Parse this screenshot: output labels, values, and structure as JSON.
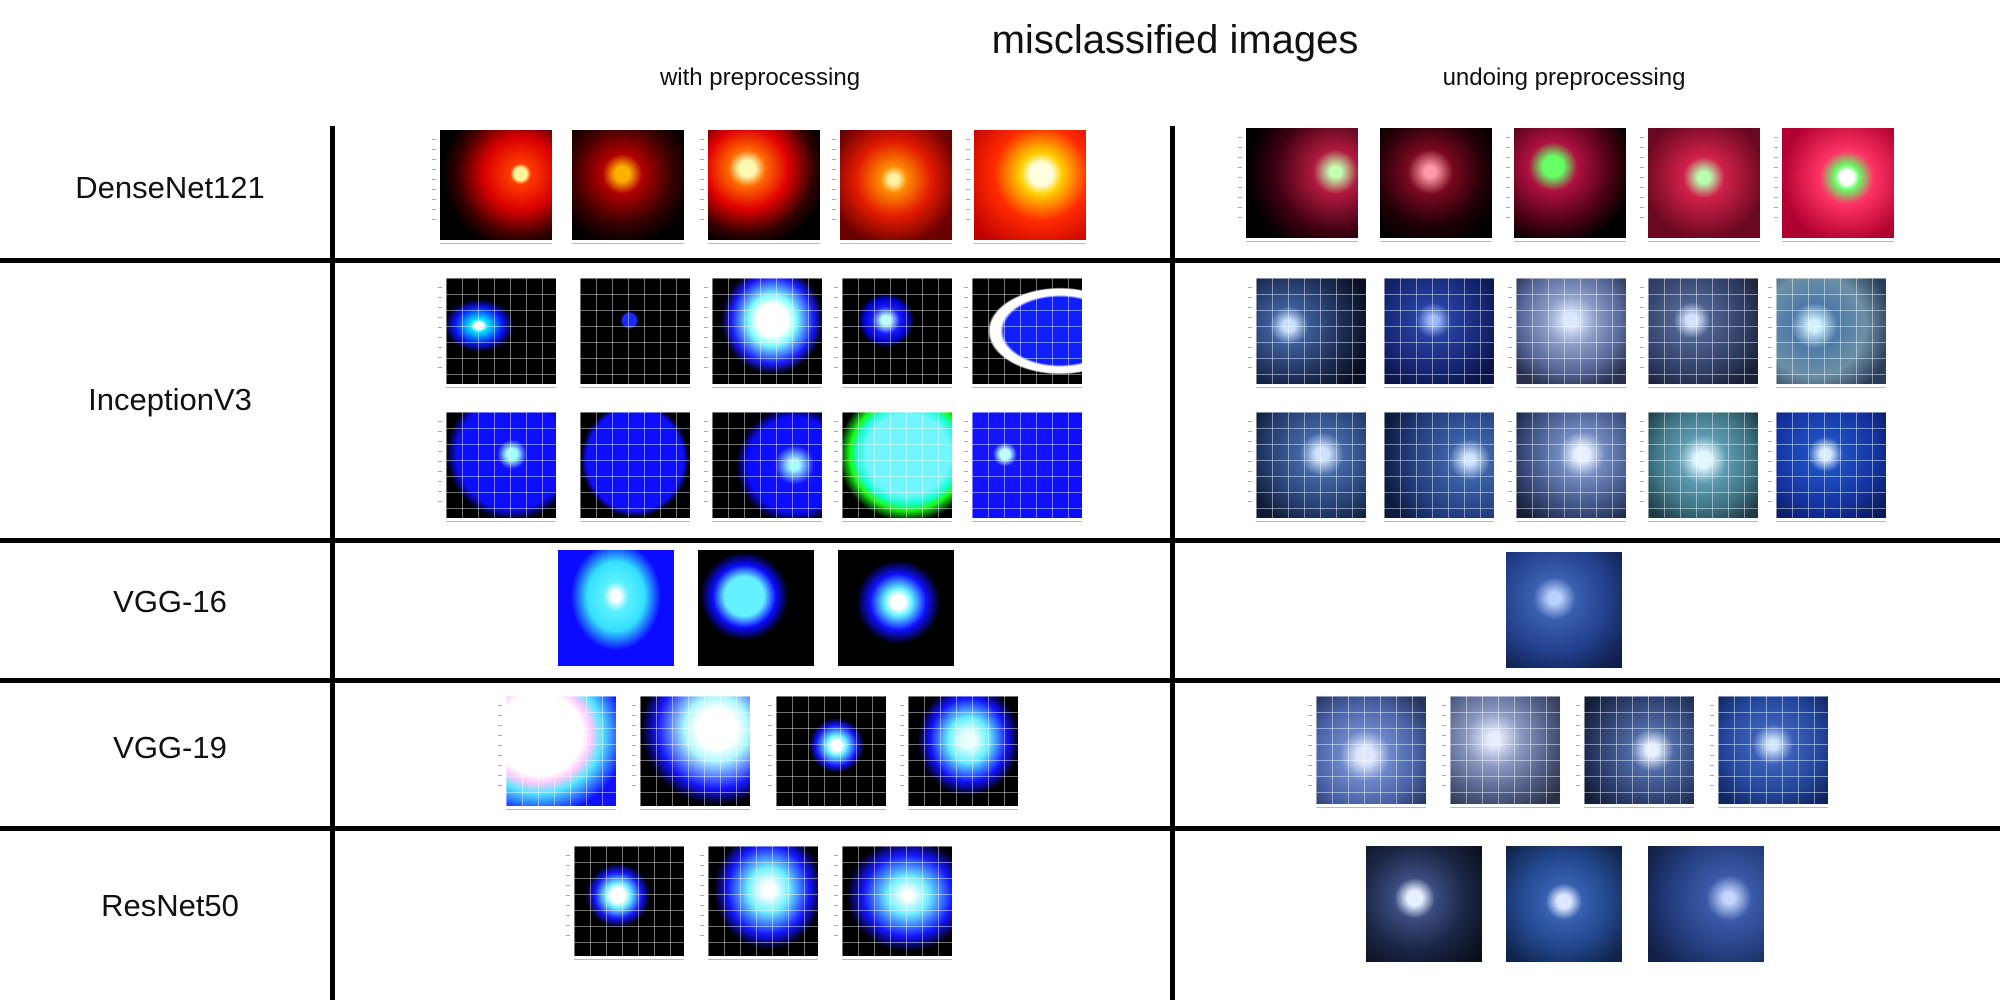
{
  "title": "misclassified images",
  "columns": {
    "with": "with preprocessing",
    "undoing": "undoing preprocessing"
  },
  "rows": [
    {
      "label": "DenseNet121"
    },
    {
      "label": "InceptionV3"
    },
    {
      "label": "VGG-16"
    },
    {
      "label": "VGG-19"
    },
    {
      "label": "ResNet50"
    }
  ]
}
